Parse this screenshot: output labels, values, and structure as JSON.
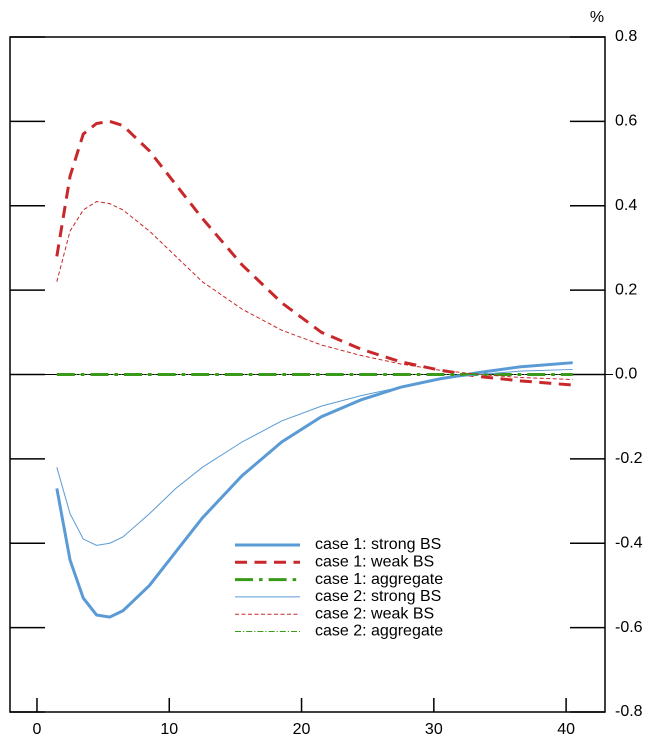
{
  "chart_data": {
    "type": "line",
    "y_unit": "%",
    "x": [
      1.5,
      2.5,
      3.5,
      4.5,
      5.5,
      6.5,
      8.5,
      10.5,
      12.5,
      15.5,
      18.5,
      21.5,
      24.5,
      27.5,
      30.5,
      33.5,
      36.5,
      40.5
    ],
    "series": [
      {
        "name": "case 1: strong BS",
        "color": "#5a9bd5",
        "linewidth": 3,
        "linestyle": "solid",
        "values": [
          -0.27,
          -0.44,
          -0.53,
          -0.57,
          -0.575,
          -0.56,
          -0.5,
          -0.42,
          -0.34,
          -0.24,
          -0.16,
          -0.1,
          -0.06,
          -0.03,
          -0.01,
          0.005,
          0.018,
          0.028
        ]
      },
      {
        "name": "case 1: weak BS",
        "color": "#c8282a",
        "linewidth": 3,
        "linestyle": "dashed",
        "values": [
          0.28,
          0.47,
          0.57,
          0.595,
          0.6,
          0.59,
          0.53,
          0.45,
          0.37,
          0.26,
          0.17,
          0.1,
          0.06,
          0.03,
          0.01,
          -0.005,
          -0.015,
          -0.025
        ]
      },
      {
        "name": "case 1: aggregate",
        "color": "#3a9a1a",
        "linewidth": 3,
        "linestyle": "dashdot",
        "values": [
          0,
          0,
          0,
          0,
          0,
          0,
          0,
          0,
          0,
          0,
          0,
          0,
          0,
          0,
          0,
          0,
          0,
          0
        ]
      },
      {
        "name": "case 2: strong BS",
        "color": "#5a9bd5",
        "linewidth": 1,
        "linestyle": "solid",
        "values": [
          -0.22,
          -0.33,
          -0.39,
          -0.405,
          -0.4,
          -0.385,
          -0.33,
          -0.27,
          -0.22,
          -0.16,
          -0.11,
          -0.075,
          -0.05,
          -0.03,
          -0.01,
          0,
          0.008,
          0.012
        ]
      },
      {
        "name": "case 2: weak BS",
        "color": "#c8282a",
        "linewidth": 1,
        "linestyle": "dashed",
        "values": [
          0.22,
          0.34,
          0.39,
          0.41,
          0.405,
          0.39,
          0.34,
          0.28,
          0.22,
          0.155,
          0.105,
          0.07,
          0.045,
          0.025,
          0.01,
          0,
          -0.007,
          -0.012
        ]
      },
      {
        "name": "case 2: aggregate",
        "color": "#3a9a1a",
        "linewidth": 1,
        "linestyle": "dashdot",
        "values": [
          0,
          0,
          0,
          0,
          0,
          0,
          0,
          0,
          0,
          0,
          0,
          0,
          0,
          0,
          0,
          0,
          0,
          0
        ]
      }
    ],
    "xlim": [
      -2.04,
      42.94
    ],
    "xticks": [
      0,
      10,
      20,
      30,
      40
    ],
    "ylim": [
      -0.8,
      0.8
    ],
    "yticks": [
      0.8,
      0.6,
      0.4,
      0.2,
      {
        "value": 0,
        "label": "0.0"
      },
      -0.2,
      -0.4,
      -0.6,
      -0.8
    ]
  }
}
